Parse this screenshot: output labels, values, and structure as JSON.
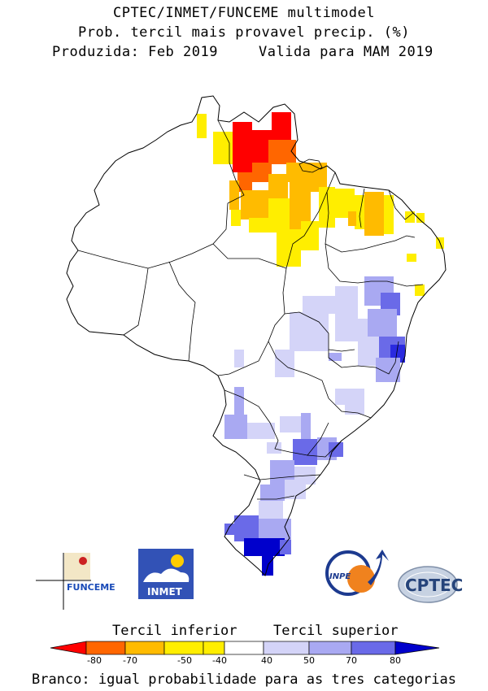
{
  "title": {
    "line1": "CPTEC/INMET/FUNCEME multimodel",
    "line2": "Prob. tercil mais provavel precip. (%)",
    "produced": "Produzida: Feb 2019",
    "valid": "Valida para MAM 2019"
  },
  "legend": {
    "lower_label": "Tercil inferior",
    "upper_label": "Tercil superior",
    "ticks": [
      "-80",
      "-70",
      "-50",
      "-40",
      "40",
      "50",
      "70",
      "80"
    ],
    "colors": {
      "dry_80": "#ff0000",
      "dry_70": "#ff6600",
      "dry_50": "#ffbb00",
      "dry_40": "#ffee00",
      "neutral": "#ffffff",
      "wet_40": "#d4d4f8",
      "wet_50": "#a9a9f2",
      "wet_70": "#6a6ae8",
      "wet_80": "#2a2ae0",
      "wet_max": "#0000cc"
    }
  },
  "footnote": "Branco: igual probabilidade para as tres categorias",
  "logos": {
    "funceme": "FUNCEME",
    "inmet": "INMET",
    "inpe": "INPE",
    "cptec": "CPTEC"
  }
}
